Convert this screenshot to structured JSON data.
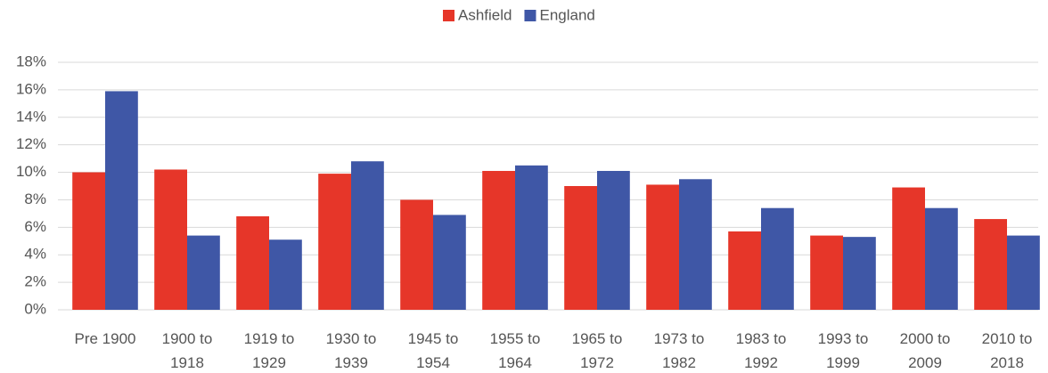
{
  "chart_data": {
    "type": "bar",
    "categories": [
      "Pre 1900",
      "1900 to 1918",
      "1919 to 1929",
      "1930 to 1939",
      "1945 to 1954",
      "1955 to 1964",
      "1965 to 1972",
      "1973 to 1982",
      "1983 to 1992",
      "1993 to 1999",
      "2000 to 2009",
      "2010 to 2018"
    ],
    "series": [
      {
        "name": "Ashfield",
        "color": "#e63629",
        "values": [
          10.0,
          10.2,
          6.8,
          9.9,
          8.0,
          10.1,
          9.0,
          9.1,
          5.7,
          5.4,
          8.9,
          6.6
        ]
      },
      {
        "name": "England",
        "color": "#3f57a6",
        "values": [
          15.9,
          5.4,
          5.1,
          10.8,
          6.9,
          10.5,
          10.1,
          9.5,
          7.4,
          5.3,
          7.4,
          5.4
        ]
      }
    ],
    "ylim": [
      0,
      18
    ],
    "yticks": [
      {
        "value": 0,
        "label": "0%"
      },
      {
        "value": 2,
        "label": "2%"
      },
      {
        "value": 4,
        "label": "4%"
      },
      {
        "value": 6,
        "label": "6%"
      },
      {
        "value": 8,
        "label": "8%"
      },
      {
        "value": 10,
        "label": "10%"
      },
      {
        "value": 12,
        "label": "12%"
      },
      {
        "value": 14,
        "label": "14%"
      },
      {
        "value": 16,
        "label": "16%"
      },
      {
        "value": 18,
        "label": "18%"
      }
    ],
    "grid": true,
    "legend": "top"
  }
}
